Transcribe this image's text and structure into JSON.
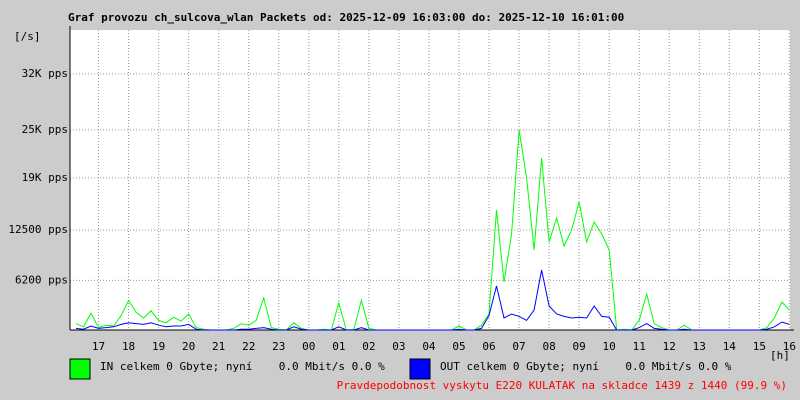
{
  "chart_data": {
    "type": "line",
    "title": "Graf provozu ch_sulcova_wlan Packets od: 2025-12-09 16:03:00 do: 2025-12-10 16:01:00",
    "y_label": "[/s]",
    "x_label": "[h]",
    "footer": "Pravdepodobnost vyskytu E220 KULATAK na skladce 1439 z 1440 (99.9 %)",
    "grid": true,
    "xlim": [
      16.05,
      40.02
    ],
    "xticks": [
      17,
      18,
      19,
      20,
      21,
      22,
      23,
      {
        "value": 24,
        "label": "00"
      },
      {
        "value": 25,
        "label": "01"
      },
      {
        "value": 26,
        "label": "02"
      },
      {
        "value": 27,
        "label": "03"
      },
      {
        "value": 28,
        "label": "04"
      },
      {
        "value": 29,
        "label": "05"
      },
      {
        "value": 30,
        "label": "06"
      },
      {
        "value": 31,
        "label": "07"
      },
      {
        "value": 32,
        "label": "08"
      },
      {
        "value": 33,
        "label": "09"
      },
      {
        "value": 34,
        "label": "10"
      },
      {
        "value": 35,
        "label": "11"
      },
      {
        "value": 36,
        "label": "12"
      },
      {
        "value": 37,
        "label": "13"
      },
      {
        "value": 38,
        "label": "14"
      },
      {
        "value": 39,
        "label": "15"
      },
      {
        "value": 40,
        "label": "16"
      }
    ],
    "ylim": [
      0,
      37500
    ],
    "yticks": [
      {
        "value": 6200,
        "label": "6200 pps"
      },
      {
        "value": 12500,
        "label": "12500 pps"
      },
      {
        "value": 19000,
        "label": "19K pps"
      },
      {
        "value": 25000,
        "label": "25K pps"
      },
      {
        "value": 32000,
        "label": "32K pps"
      }
    ],
    "x": [
      16.25,
      16.5,
      16.75,
      17,
      17.25,
      17.5,
      17.75,
      18,
      18.25,
      18.5,
      18.75,
      19,
      19.25,
      19.5,
      19.75,
      20,
      20.25,
      20.5,
      20.75,
      21,
      21.25,
      21.5,
      21.75,
      22,
      22.25,
      22.5,
      22.75,
      23,
      23.25,
      23.5,
      23.75,
      24,
      24.25,
      24.5,
      24.75,
      25,
      25.25,
      25.5,
      25.75,
      26,
      26.25,
      26.5,
      26.75,
      27,
      27.25,
      27.5,
      27.75,
      28,
      28.25,
      28.5,
      28.75,
      29,
      29.25,
      29.5,
      29.75,
      30,
      30.25,
      30.5,
      30.75,
      31,
      31.25,
      31.5,
      31.75,
      32,
      32.25,
      32.5,
      32.75,
      33,
      33.25,
      33.5,
      33.75,
      34,
      34.25,
      34.5,
      34.75,
      35,
      35.25,
      35.5,
      35.75,
      36,
      36.25,
      36.5,
      36.75,
      37,
      37.25,
      37.5,
      37.75,
      38,
      38.25,
      38.5,
      38.75,
      39,
      39.25,
      39.5,
      39.75,
      40
    ],
    "series": [
      {
        "name": "IN celkem 0 Gbyte; nyní    0.0 Mbit/s 0.0 %",
        "color": "#00ff00",
        "values": [
          800,
          400,
          2100,
          300,
          600,
          500,
          1800,
          3700,
          2200,
          1500,
          2400,
          1200,
          900,
          1600,
          1100,
          2000,
          300,
          100,
          0,
          0,
          0,
          200,
          800,
          600,
          1200,
          4000,
          300,
          100,
          0,
          900,
          200,
          0,
          0,
          100,
          0,
          3400,
          0,
          100,
          3700,
          200,
          0,
          0,
          0,
          0,
          0,
          0,
          0,
          0,
          0,
          0,
          0,
          500,
          0,
          0,
          600,
          2000,
          15000,
          6000,
          12000,
          25000,
          19000,
          10000,
          21500,
          11000,
          14000,
          10500,
          12500,
          16000,
          11000,
          13500,
          12000,
          10000,
          0,
          100,
          0,
          1200,
          4500,
          800,
          300,
          0,
          0,
          600,
          0,
          0,
          0,
          0,
          0,
          0,
          0,
          0,
          0,
          0,
          300,
          1500,
          3500,
          2500
        ]
      },
      {
        "name": "OUT celkem 0 Gbyte; nyní    0.0 Mbit/s 0.0 %",
        "color": "#0000ff",
        "values": [
          200,
          100,
          500,
          200,
          300,
          400,
          700,
          900,
          800,
          700,
          900,
          600,
          400,
          500,
          500,
          700,
          100,
          0,
          0,
          0,
          0,
          0,
          100,
          100,
          200,
          300,
          100,
          0,
          0,
          400,
          100,
          0,
          0,
          0,
          0,
          400,
          0,
          0,
          300,
          0,
          0,
          0,
          0,
          0,
          0,
          0,
          0,
          0,
          0,
          0,
          0,
          100,
          0,
          0,
          200,
          1800,
          5500,
          1500,
          2000,
          1700,
          1200,
          2500,
          7500,
          3000,
          2000,
          1700,
          1500,
          1600,
          1500,
          3000,
          1700,
          1600,
          0,
          0,
          0,
          300,
          800,
          200,
          100,
          0,
          0,
          100,
          0,
          0,
          0,
          0,
          0,
          0,
          0,
          0,
          0,
          0,
          100,
          400,
          1000,
          700
        ]
      }
    ]
  }
}
